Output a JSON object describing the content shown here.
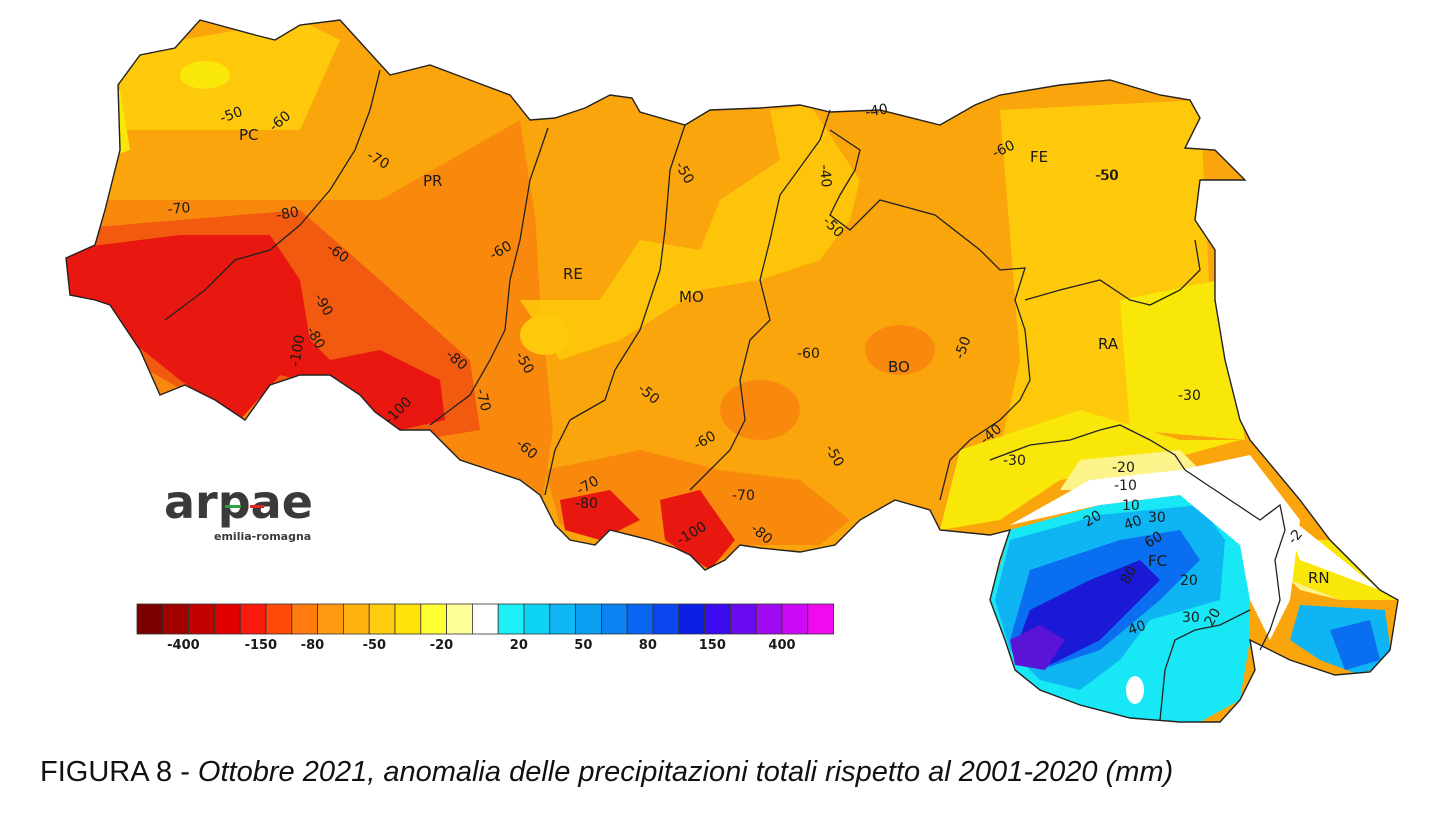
{
  "map": {
    "provinces": [
      "PC",
      "PR",
      "RE",
      "MO",
      "BO",
      "FE",
      "RA",
      "FC",
      "RN"
    ],
    "contour_labels": [
      "-50",
      "-60",
      "-70",
      "-80",
      "-70",
      "-60",
      "-50",
      "-90",
      "-80",
      "-100",
      "-80",
      "-70",
      "-60",
      "-100",
      "-60",
      "-50",
      "-50",
      "-60",
      "-50",
      "-40",
      "-40",
      "-50",
      "-60",
      "-50",
      "-50",
      "-70",
      "-70",
      "-80",
      "-80",
      "-100",
      "-60",
      "-50",
      "-40",
      "-30",
      "-30",
      "-20",
      "-10",
      "10",
      "20",
      "30",
      "40",
      "60",
      "80",
      "40",
      "20",
      "30",
      "20",
      "-2"
    ],
    "colors": {
      "deep_red": "#e8170f",
      "orange_red": "#f25a0f",
      "orange": "#f9890d",
      "amber": "#fba50c",
      "gold": "#fdc90a",
      "yellow": "#f9e70a",
      "pale_yellow": "#fcf38a",
      "cyan": "#18e8f5",
      "sky": "#0fb4f2",
      "blue": "#0a6ef0",
      "deep_blue": "#1a1ad6",
      "violet": "#5a14d8"
    }
  },
  "logo": {
    "brand": "arpae",
    "subtitle": "emilia-romagna"
  },
  "legend": {
    "colors": [
      "#7d0000",
      "#a30000",
      "#c40000",
      "#e00000",
      "#f91a0d",
      "#ff4a0a",
      "#ff7a0f",
      "#ff9a10",
      "#ffb310",
      "#ffcc0f",
      "#ffe30a",
      "#ffff33",
      "#ffff99",
      "#ffffff",
      "#1af0f5",
      "#0fd3f5",
      "#0fb8f5",
      "#0a9ff0",
      "#0a83f0",
      "#0a66f0",
      "#0a45f0",
      "#0a1ee6",
      "#3d0af0",
      "#6a0af0",
      "#a00af0",
      "#cc0af5",
      "#f00af0"
    ],
    "ticks": [
      "-400",
      "-150",
      "-80",
      "-50",
      "-20",
      "20",
      "50",
      "80",
      "150",
      "400"
    ]
  },
  "caption": {
    "prefix": "FIGURA 8 - ",
    "italic": "Ottobre 2021, anomalia delle precipitazioni totali rispetto al 2001-2020 (mm)"
  }
}
